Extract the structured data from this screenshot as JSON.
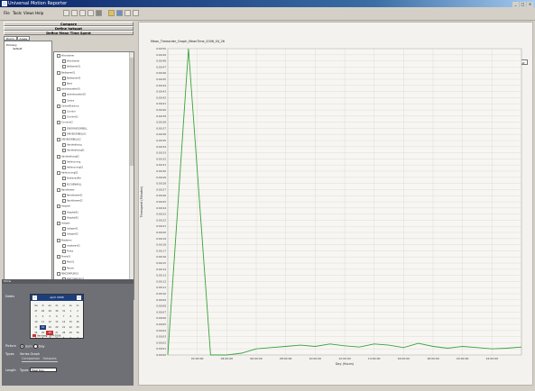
{
  "window": {
    "title": "Universal Motion Reporter",
    "controls": [
      "_",
      "□",
      "×"
    ]
  },
  "menu": [
    "File",
    "Tools",
    "Views",
    "Help"
  ],
  "toolbar": {
    "icons": [
      "cut-icon",
      "copy-icon",
      "paste-icon",
      "help-icon",
      "grid-icon",
      "folder-icon",
      "chart-icon",
      "window-icon",
      "arrow-icon"
    ]
  },
  "left": {
    "buttons": [
      "Compare",
      "Define hotspot",
      "Define Mean Time Spent"
    ],
    "tabs": [
      "Room",
      "Areas"
    ],
    "tree_left": [
      "Primary",
      "default"
    ],
    "tree_right": [
      "Woonkamer",
      "Woonkamer",
      "Badkamer01",
      "Badkamer01",
      "Badkamer02",
      "Bank",
      "bankdeurzeker01",
      "bankdeurzeker02",
      "Centra",
      "CentralEntrance",
      "Corridor",
      "Corridor01",
      "Corridor02",
      "DR/DRIVEDORBELL",
      "DRIVEDORBELL01",
      "DRIVEDORBELL02",
      "Hanthebliving",
      "Hanthebliving01",
      "Hanthebliving02",
      "Hallerunning",
      "Hallerunning01",
      "Hallerunning02",
      "Keukenbuffer",
      "KUCHENWALL",
      "Nachtkamer",
      "Nachtkamer01",
      "Nachtkamer02",
      "Hospital",
      "Hospital01",
      "Hospital02",
      "Inslaper",
      "Inslaper01",
      "Inslaper02",
      "Maskeren",
      "maskeren01",
      "Praxis",
      "Praxis01",
      "Plan01",
      "Receiv",
      "REKCOMPLEKS1",
      "REKCOMPLEKS2",
      "REKCOMPLEKS3",
      "Middelkamer"
    ]
  },
  "lower": {
    "header": "Show",
    "dates_label": "Dates",
    "calendar": {
      "month": "april 2006",
      "prev": "<",
      "next": ">",
      "weekdays": [
        "ma",
        "di",
        "wo",
        "do",
        "vr",
        "za",
        "zo"
      ],
      "days": [
        "27",
        "28",
        "29",
        "30",
        "31",
        "1",
        "2",
        "3",
        "4",
        "5",
        "6",
        "7",
        "8",
        "9",
        "10",
        "11",
        "12",
        "13",
        "14",
        "15",
        "16",
        "17",
        "18",
        "19",
        "20",
        "21",
        "22",
        "23",
        "24",
        "25",
        "26",
        "27",
        "28",
        "29",
        "30",
        "1",
        "2",
        "3",
        "4",
        "5",
        "6",
        "7"
      ],
      "today_text": "Vandaag: 26-4-2006"
    },
    "picture_label": "Picture",
    "picture_options": [
      "Sum",
      "Day"
    ],
    "types_label": "Types",
    "types_options": [
      "Series",
      "Graph"
    ],
    "sublabels": [
      "Comparison",
      "Hotspots"
    ],
    "length_label": "Length",
    "length_opt": "Types",
    "length_select": "Meal Day"
  },
  "chart_title": "Mean_Timeorder_Graph_MeanTime_2006_04_26",
  "show_text_button": "Show Text",
  "chart_data": {
    "type": "line",
    "title": "Mean_Timeorder_Graph_MeanTime_2006_04_26",
    "xlabel": "Day (Hours)",
    "ylabel": "Timespent (Minutes)",
    "x_ticks": [
      "02:00:00",
      "04:00:00",
      "06:00:00",
      "08:00:00",
      "10:00:00",
      "12:00:00",
      "14:00:00",
      "16:00:00",
      "18:00:00",
      "20:00:00",
      "22:00:00"
    ],
    "y_ticks": [
      "0:00:50",
      "0:00:49",
      "0:00:48",
      "0:00:47",
      "0:00:46",
      "0:00:45",
      "0:00:44",
      "0:00:43",
      "0:00:42",
      "0:00:41",
      "0:00:40",
      "0:00:39",
      "0:00:38",
      "0:00:37",
      "0:00:36",
      "0:00:35",
      "0:00:34",
      "0:00:33",
      "0:00:32",
      "0:00:31",
      "0:00:30",
      "0:00:29",
      "0:00:28",
      "0:00:27",
      "0:00:26",
      "0:00:25",
      "0:00:24",
      "0:00:23",
      "0:00:22",
      "0:00:21",
      "0:00:20",
      "0:00:19",
      "0:00:18",
      "0:00:17",
      "0:00:16",
      "0:00:15",
      "0:00:14",
      "0:00:13",
      "0:00:12",
      "0:00:11",
      "0:00:10",
      "0:00:09",
      "0:00:08",
      "0:00:07",
      "0:00:06",
      "0:00:05",
      "0:00:04",
      "0:00:03",
      "0:00:02",
      "0:00:01",
      "0:00:00"
    ],
    "ylim": [
      0,
      50
    ],
    "xlim": [
      0,
      24
    ],
    "series": [
      {
        "color": "#3aa23a",
        "x": [
          0,
          1.4,
          2.9,
          4,
          5,
          6,
          7,
          8,
          9,
          10,
          11,
          12,
          13,
          14,
          15,
          16,
          17,
          18,
          19,
          20,
          21,
          22,
          23,
          24
        ],
        "y": [
          0,
          50,
          0,
          0,
          0.3,
          1.0,
          1.2,
          1.4,
          1.6,
          1.4,
          1.8,
          1.5,
          1.3,
          1.8,
          1.6,
          1.2,
          1.9,
          1.4,
          1.1,
          1.4,
          1.2,
          1.0,
          1.1,
          1.3
        ]
      }
    ],
    "grid": true
  }
}
